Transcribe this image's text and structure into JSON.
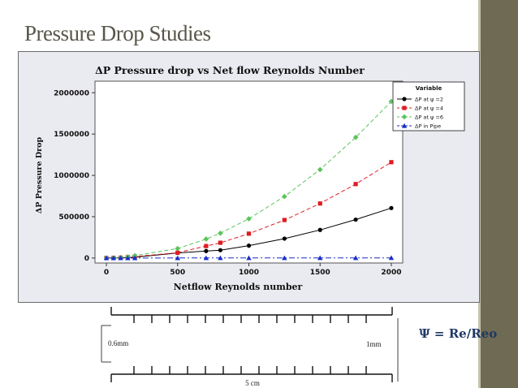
{
  "slide": {
    "title": "Pressure Drop Studies",
    "formula": "Ψ = Re/Reo"
  },
  "colors": {
    "sidebar": "#6f6a54",
    "title": "#59564a",
    "plot_bg": "#eaeaf1",
    "formula": "#1f3864"
  },
  "diagram": {
    "left_label": "0.6mm",
    "right_label": "1mm",
    "bottom_label": "5 cm"
  },
  "chart_data": {
    "type": "line",
    "title": "ΔP Pressure drop vs Net flow Reynolds Number",
    "xlabel": "Netflow Reynolds number",
    "ylabel": "ΔP Pressure Drop",
    "xlim": [
      -80,
      2080
    ],
    "ylim": [
      -60000,
      2140000
    ],
    "xticks": [
      0,
      500,
      1000,
      1500,
      2000
    ],
    "yticks": [
      0,
      500000,
      1000000,
      1500000,
      2000000
    ],
    "grid": false,
    "legend_position": "top-right",
    "legend_title": "Variable",
    "x": [
      0,
      50,
      100,
      150,
      200,
      500,
      700,
      800,
      1000,
      1250,
      1500,
      1750,
      2000
    ],
    "series": [
      {
        "name": "ΔP at ψ =2",
        "color": "#000000",
        "marker": "circle",
        "values": [
          0,
          600,
          2400,
          5400,
          9600,
          62000,
          85000,
          95000,
          150000,
          235000,
          340000,
          465000,
          605000
        ]
      },
      {
        "name": "ΔP at ψ =4",
        "color": "#e01b22",
        "marker": "square",
        "values": [
          0,
          1100,
          4500,
          10000,
          18000,
          65000,
          145000,
          185000,
          295000,
          460000,
          660000,
          895000,
          1160000
        ]
      },
      {
        "name": "ΔP at ψ =6",
        "color": "#59c45a",
        "marker": "diamond",
        "values": [
          0,
          1800,
          7000,
          16000,
          29000,
          115000,
          230000,
          300000,
          475000,
          745000,
          1070000,
          1460000,
          1895000
        ]
      },
      {
        "name": "ΔP in Pipe",
        "color": "#1a2cc9",
        "marker": "triangle",
        "values": [
          0,
          50,
          100,
          150,
          200,
          500,
          700,
          800,
          1000,
          1250,
          1500,
          1750,
          2000
        ]
      }
    ]
  }
}
